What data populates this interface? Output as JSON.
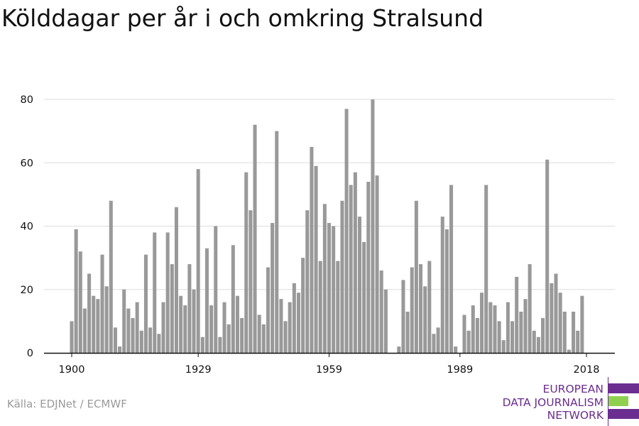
{
  "title": "Kölddagar per år i och omkring Stralsund",
  "source": "Källa: EDJNet / ECMWF",
  "logo": {
    "lines": [
      "EUROPEAN",
      "DATA JOURNALISM",
      "NETWORK"
    ],
    "colors": {
      "purple": "#6b2d8f",
      "green": "#8fd14f"
    }
  },
  "colors": {
    "bar": "#999999",
    "grid": "#dddddd",
    "axis": "#111111",
    "text": "#111111"
  },
  "chart_data": {
    "type": "bar",
    "title": "Kölddagar per år i och omkring Stralsund",
    "xlabel": "",
    "ylabel": "",
    "ylim": [
      0,
      80
    ],
    "yticks": [
      0,
      20,
      40,
      60,
      80
    ],
    "xticks": [
      1900,
      1929,
      1959,
      1989,
      2018
    ],
    "grid": true,
    "x": [
      1900,
      1901,
      1902,
      1903,
      1904,
      1905,
      1906,
      1907,
      1908,
      1909,
      1910,
      1911,
      1912,
      1913,
      1914,
      1915,
      1916,
      1917,
      1918,
      1919,
      1920,
      1921,
      1922,
      1923,
      1924,
      1925,
      1926,
      1927,
      1928,
      1929,
      1930,
      1931,
      1932,
      1933,
      1934,
      1935,
      1936,
      1937,
      1938,
      1939,
      1940,
      1941,
      1942,
      1943,
      1944,
      1945,
      1946,
      1947,
      1948,
      1949,
      1950,
      1951,
      1952,
      1953,
      1954,
      1955,
      1956,
      1957,
      1958,
      1959,
      1960,
      1961,
      1962,
      1963,
      1964,
      1965,
      1966,
      1967,
      1968,
      1969,
      1970,
      1971,
      1972,
      1973,
      1974,
      1975,
      1976,
      1977,
      1978,
      1979,
      1980,
      1981,
      1982,
      1983,
      1984,
      1985,
      1986,
      1987,
      1988,
      1989,
      1990,
      1991,
      1992,
      1993,
      1994,
      1995,
      1996,
      1997,
      1998,
      1999,
      2000,
      2001,
      2002,
      2003,
      2004,
      2005,
      2006,
      2007,
      2008,
      2009,
      2010,
      2011,
      2012,
      2013,
      2014,
      2015,
      2016,
      2017,
      2018
    ],
    "values": [
      10,
      39,
      32,
      14,
      25,
      18,
      17,
      31,
      21,
      48,
      8,
      2,
      20,
      14,
      11,
      16,
      7,
      31,
      8,
      38,
      6,
      16,
      38,
      28,
      46,
      18,
      15,
      28,
      20,
      58,
      5,
      33,
      15,
      40,
      5,
      16,
      9,
      34,
      18,
      11,
      57,
      45,
      72,
      12,
      9,
      27,
      41,
      70,
      17,
      10,
      16,
      22,
      19,
      30,
      45,
      65,
      59,
      29,
      47,
      41,
      40,
      29,
      48,
      77,
      53,
      57,
      43,
      35,
      54,
      80,
      56,
      26,
      20,
      0,
      0,
      2,
      23,
      13,
      27,
      48,
      28,
      21,
      29,
      6,
      8,
      43,
      39,
      53,
      2,
      0,
      12,
      7,
      15,
      11,
      19,
      53,
      16,
      15,
      10,
      4,
      16,
      10,
      24,
      13,
      17,
      28,
      7,
      5,
      11,
      61,
      22,
      25,
      19,
      13,
      1,
      13,
      7,
      18,
      0
    ]
  }
}
